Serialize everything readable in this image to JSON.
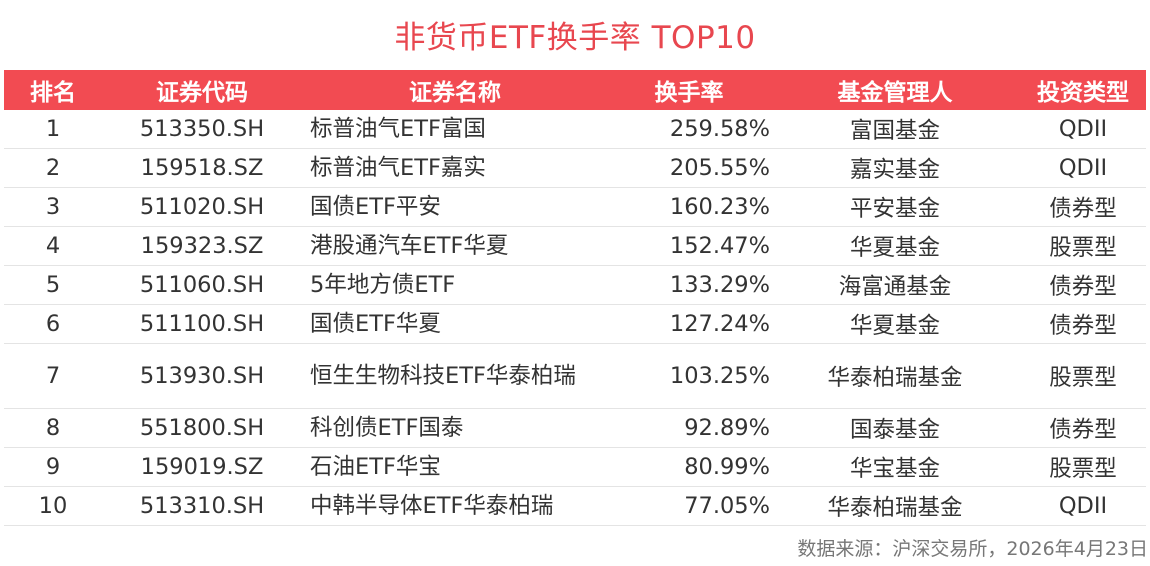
{
  "title": "非货币ETF换手率 TOP10",
  "headers": {
    "rank": "排名",
    "code": "证券代码",
    "name": "证券名称",
    "turnover": "换手率",
    "manager": "基金管理人",
    "type": "投资类型"
  },
  "rows": [
    {
      "rank": "1",
      "code": "513350.SH",
      "name": "标普油气ETF富国",
      "turnover": "259.58%",
      "manager": "富国基金",
      "type": "QDII"
    },
    {
      "rank": "2",
      "code": "159518.SZ",
      "name": "标普油气ETF嘉实",
      "turnover": "205.55%",
      "manager": "嘉实基金",
      "type": "QDII"
    },
    {
      "rank": "3",
      "code": "511020.SH",
      "name": "国债ETF平安",
      "turnover": "160.23%",
      "manager": "平安基金",
      "type": "债券型"
    },
    {
      "rank": "4",
      "code": "159323.SZ",
      "name": "港股通汽车ETF华夏",
      "turnover": "152.47%",
      "manager": "华夏基金",
      "type": "股票型"
    },
    {
      "rank": "5",
      "code": "511060.SH",
      "name": "5年地方债ETF",
      "turnover": "133.29%",
      "manager": "海富通基金",
      "type": "债券型"
    },
    {
      "rank": "6",
      "code": "511100.SH",
      "name": "国债ETF华夏",
      "turnover": "127.24%",
      "manager": "华夏基金",
      "type": "债券型"
    },
    {
      "rank": "7",
      "code": "513930.SH",
      "name": "恒生生物科技ETF华泰柏瑞",
      "turnover": "103.25%",
      "manager": "华泰柏瑞基金",
      "type": "股票型"
    },
    {
      "rank": "8",
      "code": "551800.SH",
      "name": "科创债ETF国泰",
      "turnover": "92.89%",
      "manager": "国泰基金",
      "type": "债券型"
    },
    {
      "rank": "9",
      "code": "159019.SZ",
      "name": "石油ETF华宝",
      "turnover": "80.99%",
      "manager": "华宝基金",
      "type": "股票型"
    },
    {
      "rank": "10",
      "code": "513310.SH",
      "name": "中韩半导体ETF华泰柏瑞",
      "turnover": "77.05%",
      "manager": "华泰柏瑞基金",
      "type": "QDII"
    }
  ],
  "source": "数据来源：沪深交易所，2026年4月23日",
  "colors": {
    "accent": "#f24b52",
    "title": "#e8474f"
  }
}
